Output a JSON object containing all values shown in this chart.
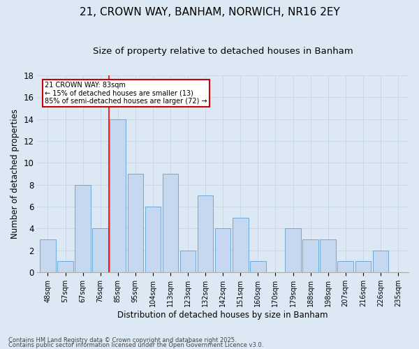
{
  "title": "21, CROWN WAY, BANHAM, NORWICH, NR16 2EY",
  "subtitle": "Size of property relative to detached houses in Banham",
  "xlabel": "Distribution of detached houses by size in Banham",
  "ylabel": "Number of detached properties",
  "categories": [
    "48sqm",
    "57sqm",
    "67sqm",
    "76sqm",
    "85sqm",
    "95sqm",
    "104sqm",
    "113sqm",
    "123sqm",
    "132sqm",
    "142sqm",
    "151sqm",
    "160sqm",
    "170sqm",
    "179sqm",
    "188sqm",
    "198sqm",
    "207sqm",
    "216sqm",
    "226sqm",
    "235sqm"
  ],
  "values": [
    3,
    1,
    8,
    4,
    14,
    9,
    6,
    9,
    2,
    7,
    4,
    5,
    1,
    0,
    4,
    3,
    3,
    1,
    1,
    2,
    0
  ],
  "bar_color": "#c5d8f0",
  "bar_edge_color": "#6ea8d8",
  "red_line_x": 3.5,
  "annotation_text": "21 CROWN WAY: 83sqm\n← 15% of detached houses are smaller (13)\n85% of semi-detached houses are larger (72) →",
  "annotation_box_color": "#ffffff",
  "annotation_box_edge_color": "#cc0000",
  "ylim": [
    0,
    18
  ],
  "yticks": [
    0,
    2,
    4,
    6,
    8,
    10,
    12,
    14,
    16,
    18
  ],
  "grid_color": "#c8d8e8",
  "background_color": "#dde8f5",
  "footer_line1": "Contains HM Land Registry data © Crown copyright and database right 2025.",
  "footer_line2": "Contains public sector information licensed under the Open Government Licence v3.0.",
  "title_fontsize": 11,
  "subtitle_fontsize": 9.5,
  "bar_width": 0.9
}
